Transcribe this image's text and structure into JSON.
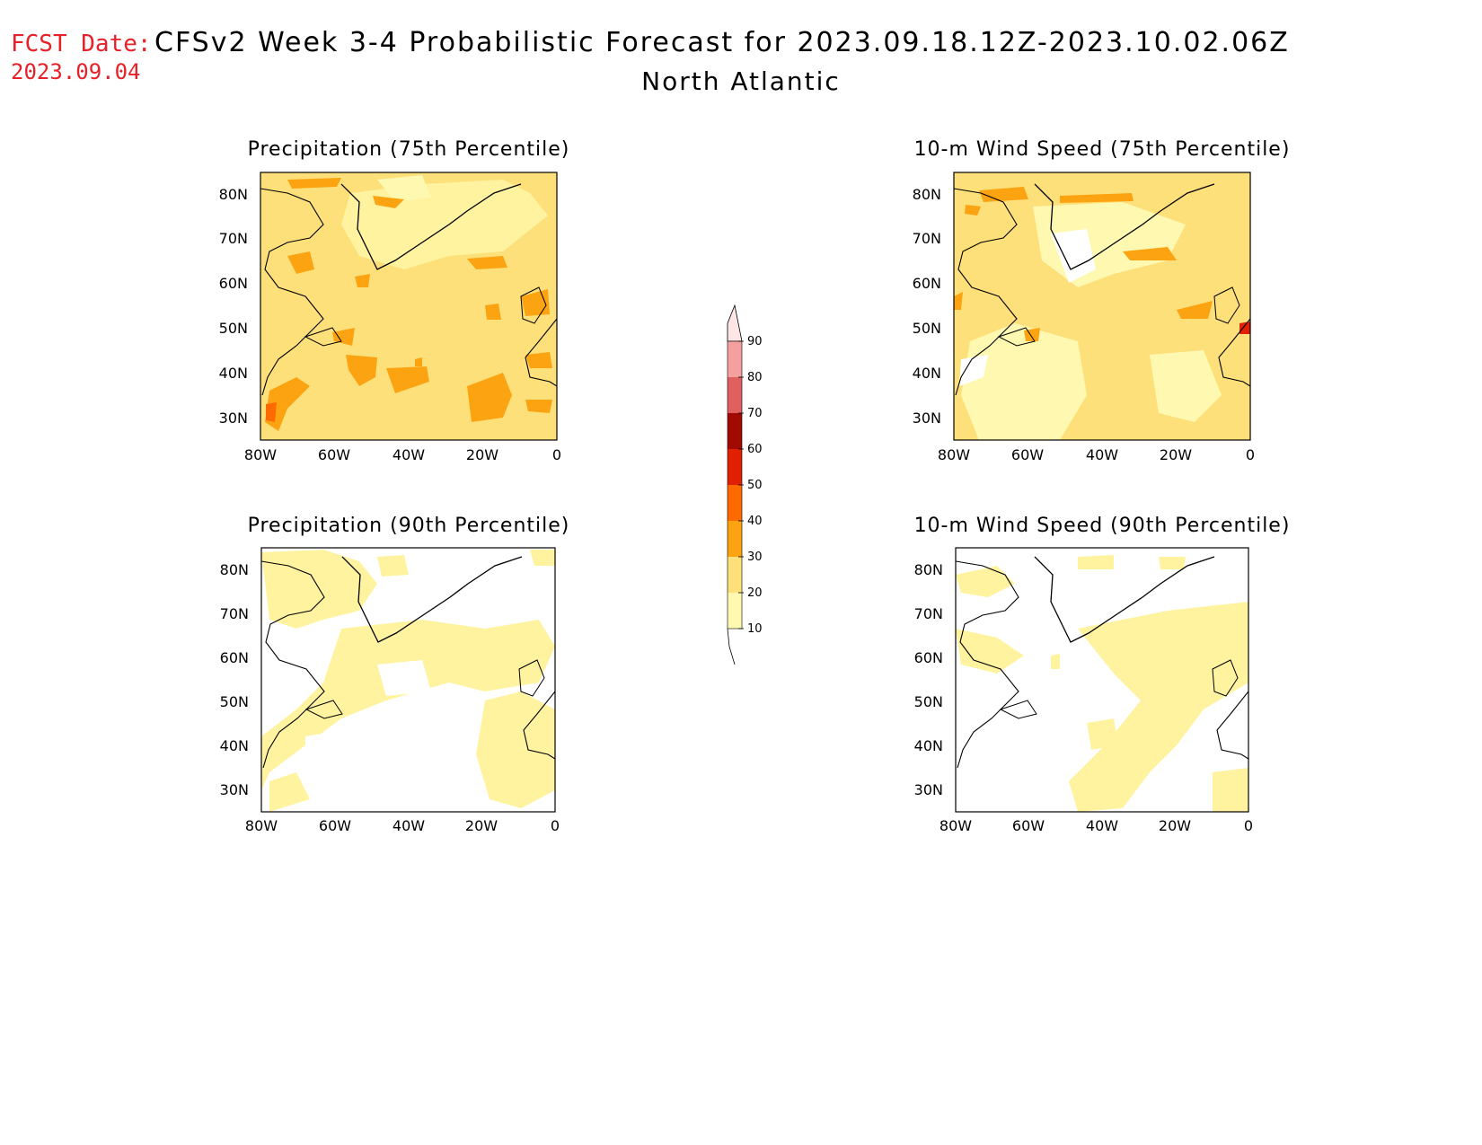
{
  "header": {
    "fcst_label": "FCST Date:",
    "fcst_date": "2023.09.04",
    "title": "CFSv2 Week 3-4 Probabilistic Forecast for 2023.09.18.12Z-2023.10.02.06Z",
    "region": "North Atlantic"
  },
  "panels": [
    {
      "title": "Precipitation (75th Percentile)"
    },
    {
      "title": "10-m Wind Speed (75th Percentile)"
    },
    {
      "title": "Precipitation (90th Percentile)"
    },
    {
      "title": "10-m Wind Speed (90th Percentile)"
    }
  ],
  "axes": {
    "lat_labels": [
      "80N",
      "70N",
      "60N",
      "50N",
      "40N",
      "30N"
    ],
    "lon_labels": [
      "80W",
      "60W",
      "40W",
      "20W",
      "0"
    ],
    "lat_range": [
      25,
      85
    ],
    "lon_range": [
      -80,
      0
    ]
  },
  "colorbar": {
    "levels": [
      10,
      20,
      30,
      40,
      50,
      60,
      70,
      80,
      90
    ],
    "colors": [
      "#fff8b0",
      "#fde07a",
      "#fca311",
      "#ff6a00",
      "#e02000",
      "#a00a00",
      "#e06060",
      "#f5a0a0",
      "#ffe6e6"
    ]
  },
  "colors": {
    "accent_red": "#e8202a",
    "panel_75_base": "#fde07a",
    "panel_90_base": "#ffffff"
  }
}
